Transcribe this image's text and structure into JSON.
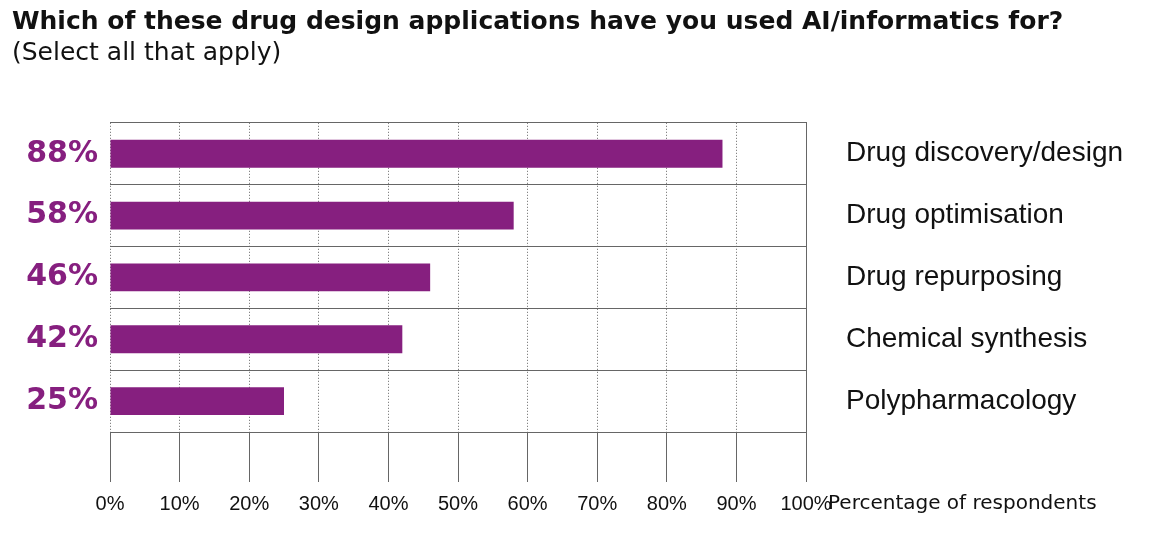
{
  "chart_data": {
    "type": "bar",
    "orientation": "horizontal",
    "title": "Which of these drug design applications have you used AI/informatics for?",
    "subtitle": "(Select all that apply)",
    "categories": [
      "Drug discovery/design",
      "Drug optimisation",
      "Drug repurposing",
      "Chemical synthesis",
      "Polypharmacology"
    ],
    "values": [
      88,
      58,
      46,
      42,
      25
    ],
    "value_labels": [
      "88%",
      "58%",
      "46%",
      "42%",
      "25%"
    ],
    "color": "#861f7f",
    "xlim": [
      0,
      100
    ],
    "xticks": [
      {
        "value": 0,
        "label": "0%"
      },
      {
        "value": 10,
        "label": "10%"
      },
      {
        "value": 20,
        "label": "20%"
      },
      {
        "value": 30,
        "label": "30%"
      },
      {
        "value": 40,
        "label": "40%"
      },
      {
        "value": 50,
        "label": "50%"
      },
      {
        "value": 60,
        "label": "60%"
      },
      {
        "value": 70,
        "label": "70%"
      },
      {
        "value": 80,
        "label": "80%"
      },
      {
        "value": 90,
        "label": "90%"
      },
      {
        "value": 100,
        "label": "100%"
      }
    ],
    "xlabel": "Percentage of respondents",
    "grid": "x",
    "legend": false
  }
}
